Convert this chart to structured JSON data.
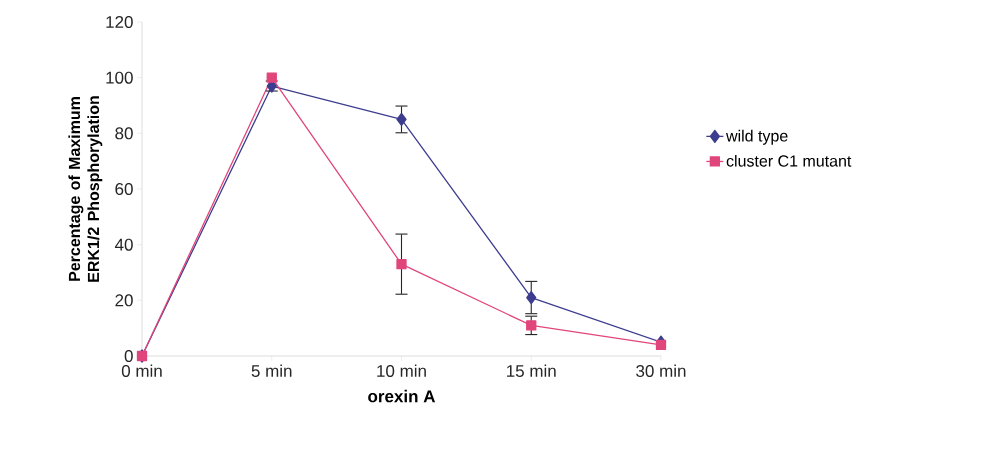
{
  "chart_data": {
    "type": "line",
    "xlabel": "orexin A",
    "ylabel": "Percentage of Maximum ERK1/2 Phosphorylation",
    "categories": [
      "0 min",
      "5 min",
      "10 min",
      "15 min",
      "30 min"
    ],
    "series": [
      {
        "name": "wild type",
        "color": "#3d3d8f",
        "marker": "diamond",
        "values": [
          0,
          97,
          85,
          21,
          5
        ],
        "errors": [
          null,
          2,
          5,
          6,
          null
        ]
      },
      {
        "name": "cluster C1 mutant",
        "color": "#e0457b",
        "marker": "square",
        "values": [
          0,
          100,
          33,
          11,
          4
        ],
        "errors": [
          null,
          null,
          11,
          3.5,
          null
        ]
      }
    ],
    "ylim": [
      0,
      120
    ],
    "yticks": [
      0,
      20,
      40,
      60,
      80,
      100,
      120
    ],
    "grid": false,
    "legend": "right",
    "line_style": "solid"
  }
}
